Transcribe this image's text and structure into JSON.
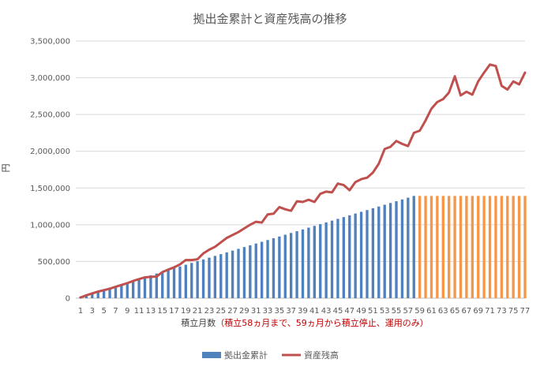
{
  "chart_data": {
    "type": "bar+line",
    "title": "拠出金累計と資産残高の推移",
    "xlabel": "積立月数",
    "xlabel_note": "（積立58ヵ月まで、59ヵ月から積立停止、運用のみ）",
    "ylabel": "円",
    "ylim": [
      0,
      3500000
    ],
    "yticks": [
      0,
      500000,
      1000000,
      1500000,
      2000000,
      2500000,
      3000000,
      3500000
    ],
    "ytick_labels": [
      "0",
      "500,000",
      "1,000,000",
      "1,500,000",
      "2,000,000",
      "2,500,000",
      "3,000,000",
      "3,500,000"
    ],
    "xlim": [
      1,
      77
    ],
    "xtick_labels": [
      "1",
      "3",
      "5",
      "7",
      "9",
      "11",
      "13",
      "15",
      "17",
      "19",
      "21",
      "23",
      "25",
      "27",
      "29",
      "31",
      "33",
      "35",
      "37",
      "39",
      "41",
      "43",
      "45",
      "47",
      "49",
      "51",
      "53",
      "55",
      "57",
      "59",
      "61",
      "63",
      "65",
      "67",
      "69",
      "71",
      "73",
      "75",
      "77"
    ],
    "grid": true,
    "legend_position": "bottom",
    "colors": {
      "contribution": "#4f81bd",
      "contribution_stopped": "#f79646",
      "balance": "#c0504d",
      "grid": "#d9d9d9",
      "axis": "#bfbfbf"
    },
    "series": [
      {
        "name": "拠出金累計",
        "kind": "bar",
        "stop_month": 58,
        "values": [
          24000,
          48000,
          72000,
          96000,
          120000,
          144000,
          168000,
          192000,
          216000,
          240000,
          264000,
          288000,
          312000,
          336000,
          360000,
          384000,
          408000,
          432000,
          456000,
          480000,
          504000,
          528000,
          552000,
          576000,
          600000,
          624000,
          648000,
          672000,
          696000,
          720000,
          744000,
          768000,
          792000,
          816000,
          840000,
          864000,
          888000,
          912000,
          936000,
          960000,
          984000,
          1008000,
          1032000,
          1056000,
          1080000,
          1104000,
          1128000,
          1152000,
          1176000,
          1200000,
          1224000,
          1248000,
          1272000,
          1296000,
          1320000,
          1344000,
          1368000,
          1392000,
          1392000,
          1392000,
          1392000,
          1392000,
          1392000,
          1392000,
          1392000,
          1392000,
          1392000,
          1392000,
          1392000,
          1392000,
          1392000,
          1392000,
          1392000,
          1392000,
          1392000,
          1392000,
          1392000
        ]
      },
      {
        "name": "資産残高",
        "kind": "line",
        "values": [
          10000,
          40000,
          65000,
          90000,
          110000,
          130000,
          155000,
          180000,
          205000,
          235000,
          260000,
          285000,
          290000,
          295000,
          355000,
          390000,
          420000,
          460000,
          520000,
          520000,
          530000,
          610000,
          660000,
          700000,
          760000,
          820000,
          860000,
          900000,
          950000,
          1000000,
          1040000,
          1030000,
          1140000,
          1150000,
          1240000,
          1210000,
          1190000,
          1320000,
          1310000,
          1340000,
          1310000,
          1420000,
          1450000,
          1440000,
          1560000,
          1540000,
          1470000,
          1580000,
          1620000,
          1640000,
          1710000,
          1830000,
          2030000,
          2060000,
          2140000,
          2100000,
          2070000,
          2250000,
          2280000,
          2420000,
          2580000,
          2670000,
          2710000,
          2800000,
          3020000,
          2760000,
          2810000,
          2770000,
          2950000,
          3070000,
          3180000,
          3160000,
          2890000,
          2840000,
          2950000,
          2910000,
          3070000
        ]
      }
    ]
  }
}
